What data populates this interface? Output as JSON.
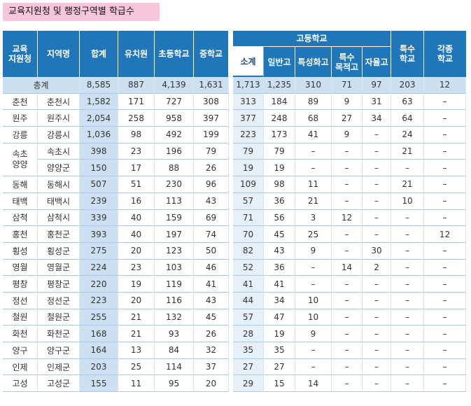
{
  "title": "교육지원청 및 행정구역별 학급수",
  "headers": {
    "office": "교육\n지원청",
    "region": "지역명",
    "total": "합계",
    "kinder": "유치원",
    "elem": "초등학교",
    "middle": "중학교",
    "high": "고등학교",
    "special": "특수\n학교",
    "misc": "각종\n학교",
    "high_sub": [
      "소계",
      "일반고",
      "특성화고",
      "특수\n목적고",
      "자율고"
    ]
  },
  "total_row": {
    "label": "총계",
    "values": [
      "8,585",
      "887",
      "4,139",
      "1,631",
      "1,713",
      "1,235",
      "310",
      "71",
      "97",
      "203",
      "12"
    ]
  },
  "rows": [
    {
      "office": "춘천",
      "region": "춘천시",
      "values": [
        "1,582",
        "171",
        "727",
        "308",
        "313",
        "184",
        "89",
        "9",
        "31",
        "63",
        "–"
      ]
    },
    {
      "office": "원주",
      "region": "원주시",
      "values": [
        "2,054",
        "258",
        "958",
        "397",
        "377",
        "248",
        "68",
        "27",
        "34",
        "64",
        "–"
      ]
    },
    {
      "office": "강릉",
      "region": "강릉시",
      "values": [
        "1,036",
        "98",
        "492",
        "199",
        "223",
        "173",
        "41",
        "9",
        "–",
        "24",
        "–"
      ]
    },
    {
      "office": "속초\n양양",
      "region": "속초시",
      "values": [
        "398",
        "23",
        "196",
        "79",
        "79",
        "79",
        "–",
        "–",
        "–",
        "21",
        "–"
      ]
    },
    {
      "office": "",
      "region": "양양군",
      "values": [
        "150",
        "17",
        "88",
        "26",
        "19",
        "19",
        "–",
        "–",
        "–",
        "–",
        "–"
      ]
    },
    {
      "office": "동해",
      "region": "동해시",
      "values": [
        "507",
        "51",
        "230",
        "96",
        "109",
        "98",
        "11",
        "–",
        "–",
        "21",
        "–"
      ]
    },
    {
      "office": "태백",
      "region": "태백시",
      "values": [
        "239",
        "16",
        "113",
        "43",
        "57",
        "36",
        "21",
        "–",
        "–",
        "10",
        "–"
      ]
    },
    {
      "office": "삼척",
      "region": "삼척시",
      "values": [
        "339",
        "40",
        "159",
        "69",
        "71",
        "56",
        "3",
        "12",
        "–",
        "–",
        "–"
      ]
    },
    {
      "office": "홍천",
      "region": "홍천군",
      "values": [
        "393",
        "40",
        "197",
        "74",
        "70",
        "45",
        "25",
        "–",
        "–",
        "–",
        "12"
      ]
    },
    {
      "office": "횡성",
      "region": "횡성군",
      "values": [
        "275",
        "20",
        "123",
        "50",
        "82",
        "43",
        "9",
        "–",
        "30",
        "–",
        "–"
      ]
    },
    {
      "office": "영월",
      "region": "영월군",
      "values": [
        "224",
        "23",
        "103",
        "46",
        "52",
        "36",
        "–",
        "14",
        "2",
        "–",
        "–"
      ]
    },
    {
      "office": "평창",
      "region": "평창군",
      "values": [
        "220",
        "19",
        "119",
        "41",
        "41",
        "41",
        "–",
        "–",
        "–",
        "–",
        "–"
      ]
    },
    {
      "office": "정선",
      "region": "정선군",
      "values": [
        "223",
        "20",
        "116",
        "43",
        "44",
        "34",
        "10",
        "–",
        "–",
        "–",
        "–"
      ]
    },
    {
      "office": "철원",
      "region": "철원군",
      "values": [
        "255",
        "21",
        "132",
        "45",
        "57",
        "47",
        "10",
        "–",
        "–",
        "–",
        "–"
      ]
    },
    {
      "office": "화천",
      "region": "화천군",
      "values": [
        "168",
        "21",
        "93",
        "26",
        "28",
        "19",
        "9",
        "–",
        "–",
        "–",
        "–"
      ]
    },
    {
      "office": "양구",
      "region": "양구군",
      "values": [
        "164",
        "13",
        "84",
        "32",
        "35",
        "35",
        "–",
        "–",
        "–",
        "–",
        "–"
      ]
    },
    {
      "office": "인제",
      "region": "인제군",
      "values": [
        "203",
        "25",
        "114",
        "37",
        "27",
        "27",
        "–",
        "–",
        "–",
        "–",
        "–"
      ]
    },
    {
      "office": "고성",
      "region": "고성군",
      "values": [
        "155",
        "11",
        "95",
        "20",
        "29",
        "15",
        "14",
        "–",
        "–",
        "–",
        "–"
      ]
    }
  ]
}
